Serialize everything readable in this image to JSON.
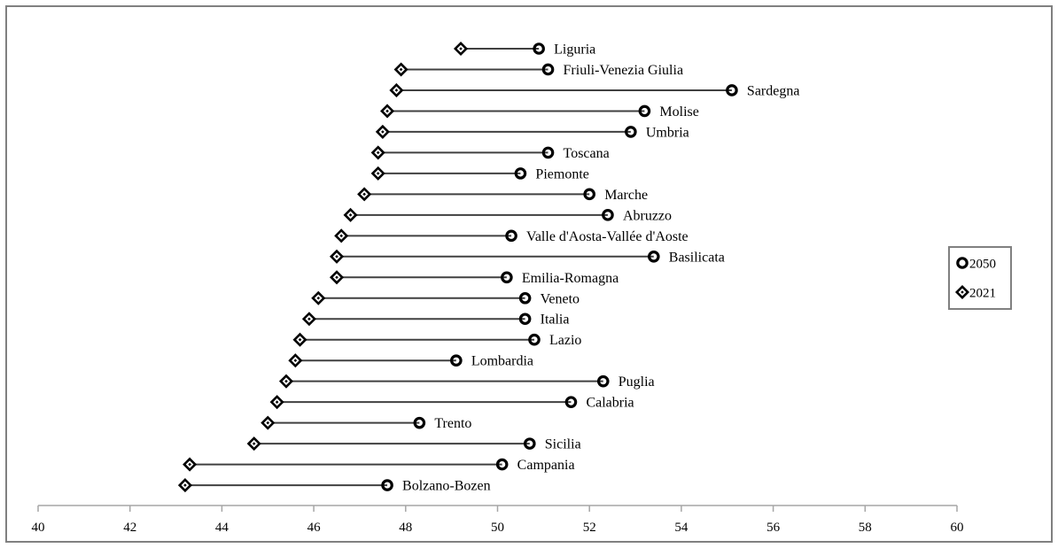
{
  "chart_data": {
    "type": "scatter",
    "subtype": "dumbbell",
    "title": "",
    "xlabel": "",
    "ylabel": "",
    "xlim": [
      40,
      60
    ],
    "xticks": [
      40,
      42,
      44,
      46,
      48,
      50,
      52,
      54,
      56,
      58,
      60
    ],
    "grid": false,
    "legend_position": "right",
    "series": [
      {
        "name": "2050",
        "marker": "ring"
      },
      {
        "name": "2021",
        "marker": "diamond"
      }
    ],
    "categories": [
      "Liguria",
      "Friuli-Venezia Giulia",
      "Sardegna",
      "Molise",
      "Umbria",
      "Toscana",
      "Piemonte",
      "Marche",
      "Abruzzo",
      "Valle d'Aosta-Vallée d'Aoste",
      "Basilicata",
      "Emilia-Romagna",
      "Veneto",
      "Italia",
      "Lazio",
      "Lombardia",
      "Puglia",
      "Calabria",
      "Trento",
      "Sicilia",
      "Campania",
      "Bolzano-Bozen"
    ],
    "values_2021": [
      49.2,
      47.9,
      47.8,
      47.6,
      47.5,
      47.4,
      47.4,
      47.1,
      46.8,
      46.6,
      46.5,
      46.5,
      46.1,
      45.9,
      45.7,
      45.6,
      45.4,
      45.2,
      45.0,
      44.7,
      43.3,
      43.2
    ],
    "values_2050": [
      50.9,
      51.1,
      55.1,
      53.2,
      52.9,
      51.1,
      50.5,
      52.0,
      52.4,
      50.3,
      53.4,
      50.2,
      50.6,
      50.6,
      50.8,
      49.1,
      52.3,
      51.6,
      48.3,
      50.7,
      50.1,
      47.6
    ]
  },
  "colors": {
    "axis": "#a6a6a6",
    "line": "#404040",
    "marker": "#000000",
    "frame": "#808080"
  }
}
